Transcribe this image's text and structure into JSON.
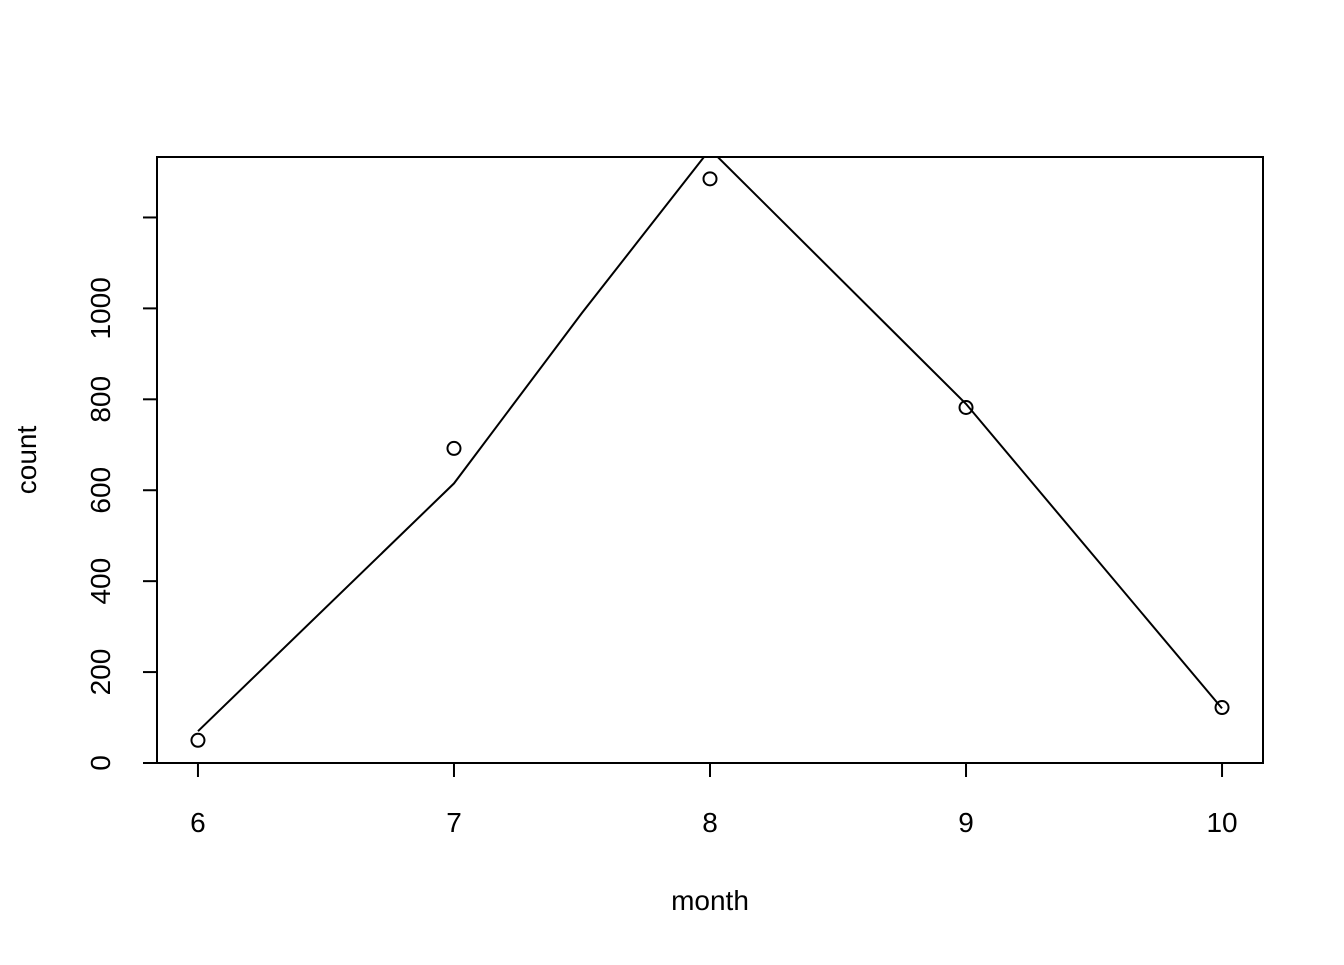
{
  "chart_data": {
    "type": "scatter",
    "title": "",
    "xlabel": "month",
    "ylabel": "count",
    "xlim": [
      5.84,
      10.16
    ],
    "ylim": [
      0,
      1333
    ],
    "xticks": [
      6,
      7,
      8,
      9,
      10
    ],
    "yticks": [
      0,
      200,
      400,
      600,
      800,
      1000
    ],
    "grid": false,
    "legend": "none",
    "colors": {
      "points": "#000000",
      "line": "#000000",
      "axes": "#000000",
      "background": "#ffffff"
    },
    "series": [
      {
        "kind": "points",
        "x": [
          6,
          7,
          8,
          9,
          10
        ],
        "y": [
          50,
          692,
          1285,
          782,
          122
        ]
      },
      {
        "kind": "line",
        "x": [
          6,
          7,
          7.5,
          8,
          9,
          10
        ],
        "y": [
          70,
          615,
          990,
          1350,
          790,
          120
        ]
      }
    ]
  }
}
